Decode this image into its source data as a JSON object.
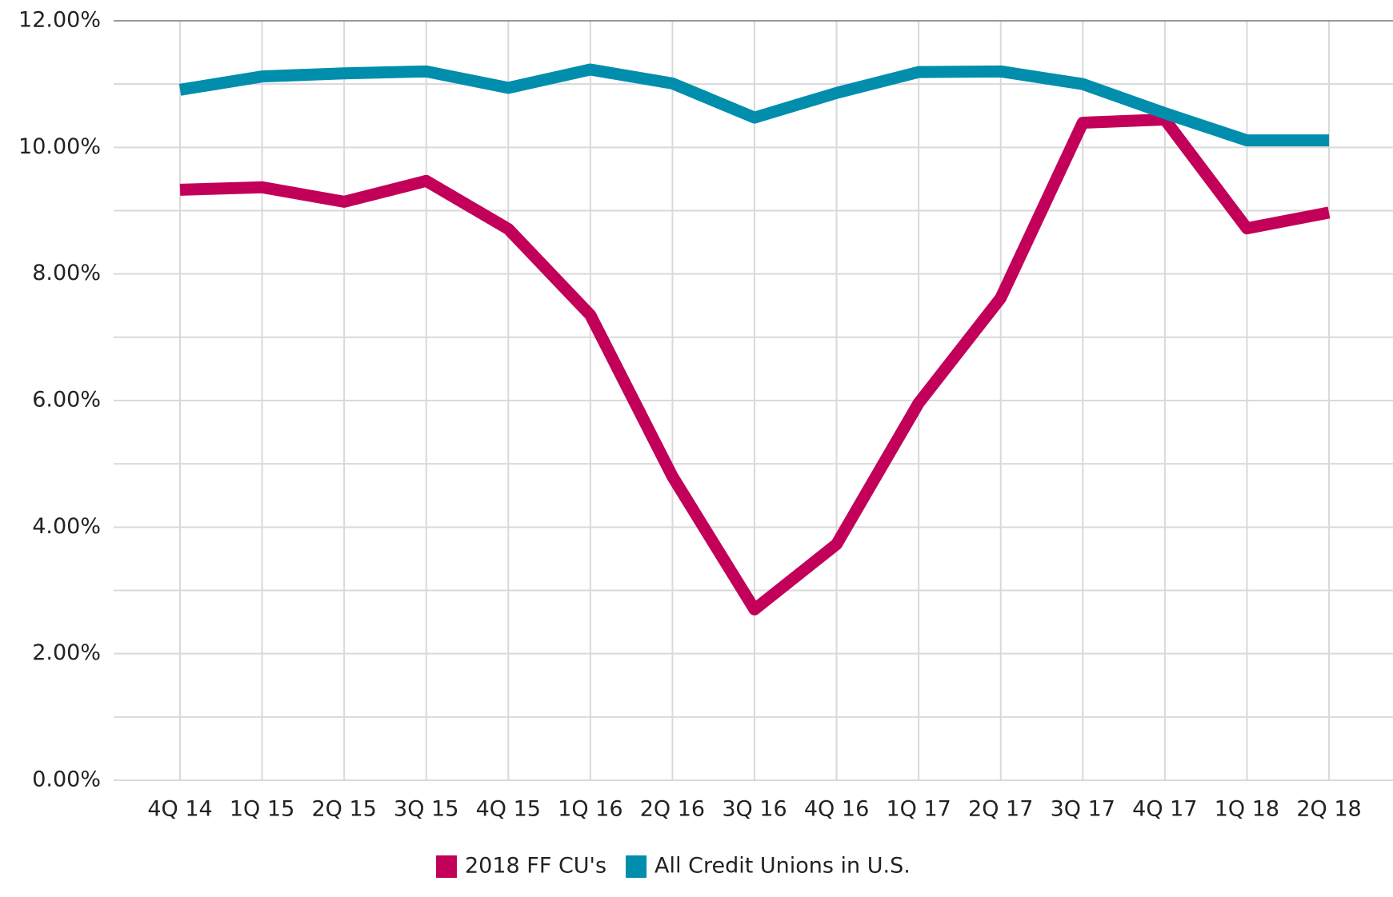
{
  "chart_data": {
    "type": "line",
    "categories": [
      "4Q 14",
      "1Q 15",
      "2Q 15",
      "3Q 15",
      "4Q 15",
      "1Q 16",
      "2Q 16",
      "3Q 16",
      "4Q 16",
      "1Q 17",
      "2Q 17",
      "3Q 17",
      "4Q 17",
      "1Q 18",
      "2Q 18"
    ],
    "series": [
      {
        "name": "2018 FF CU's",
        "color": "#c2005a",
        "values": [
          9.33,
          9.37,
          9.14,
          9.47,
          8.71,
          7.35,
          4.8,
          2.7,
          3.73,
          5.96,
          7.62,
          10.39,
          10.44,
          8.72,
          8.97
        ]
      },
      {
        "name": "All Credit Unions in U.S.",
        "color": "#008eac",
        "values": [
          10.91,
          11.12,
          11.17,
          11.2,
          10.94,
          11.23,
          11.01,
          10.47,
          10.86,
          11.19,
          11.2,
          11.0,
          10.54,
          10.11,
          10.11
        ]
      }
    ],
    "ylim": [
      0,
      12
    ],
    "yticks": [
      {
        "value": 0,
        "label": "0.00%"
      },
      {
        "value": 2,
        "label": "2.00%"
      },
      {
        "value": 4,
        "label": "4.00%"
      },
      {
        "value": 6,
        "label": "6.00%"
      },
      {
        "value": 8,
        "label": "8.00%"
      },
      {
        "value": 10,
        "label": "10.00%"
      },
      {
        "value": 12,
        "label": "12.00%"
      }
    ],
    "y_minor_ticks": [
      1,
      3,
      5,
      7,
      9,
      11
    ],
    "grid": true,
    "legend": "bottom"
  }
}
